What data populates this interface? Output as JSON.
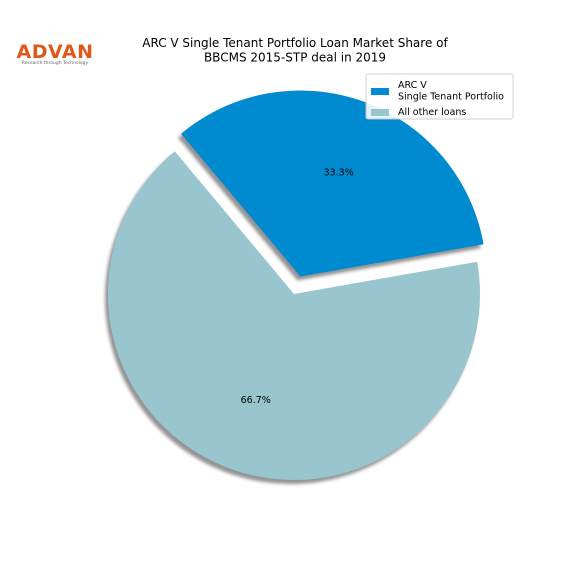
{
  "logo": {
    "name": "ADVAN",
    "tagline": "Research through Technology"
  },
  "chart_data": {
    "type": "pie",
    "title": "ARC V Single Tenant Portfolio Loan Market Share of\nBBCMS 2015-STP deal in 2019",
    "categories": [
      "ARC V\nSingle Tenant Portfolio",
      "All other loans"
    ],
    "values": [
      33.3,
      66.7
    ],
    "value_labels": [
      "33.3%",
      "66.7%"
    ],
    "colors": [
      "#008ad0",
      "#98c5ce"
    ],
    "explode": [
      0.1,
      0
    ],
    "startangle": 10,
    "shadow": true,
    "legend": "upper right"
  }
}
